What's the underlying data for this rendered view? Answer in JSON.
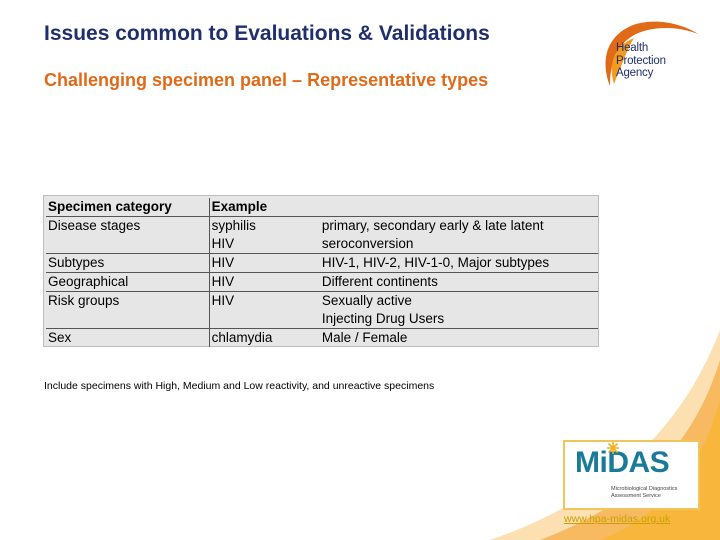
{
  "slide": {
    "title": "Issues common to Evaluations & Validations",
    "subtitle": "Challenging specimen panel – Representative types"
  },
  "hpa_logo": {
    "lines": [
      "Health",
      "Protection",
      "Agency"
    ],
    "brand_color": "#1f2f6e",
    "accent_color": "#e06a18"
  },
  "table": {
    "headers": [
      "Specimen category",
      "Example",
      ""
    ],
    "rows": [
      [
        "Disease stages",
        "syphilis",
        "primary, secondary early & late latent"
      ],
      [
        "",
        "HIV",
        "seroconversion"
      ],
      [
        "Subtypes",
        "HIV",
        "HIV-1, HIV-2, HIV-1-0, Major subtypes"
      ],
      [
        "Geographical",
        "HIV",
        "Different continents"
      ],
      [
        "Risk groups",
        "HIV",
        "Sexually active"
      ],
      [
        "",
        "",
        "Injecting Drug Users"
      ],
      [
        "Sex",
        "chlamydia",
        "Male / Female"
      ]
    ]
  },
  "note": "Include specimens with High, Medium and Low reactivity, and unreactive specimens",
  "midas_logo": {
    "word": "MiDAS",
    "sub_lines": [
      "Microbiological Diagnostics",
      "Assessment Service"
    ],
    "color": "#1a7a9a",
    "star_color": "#f2b01e"
  },
  "footer": {
    "url": "www.hpa-midas.org.uk"
  }
}
